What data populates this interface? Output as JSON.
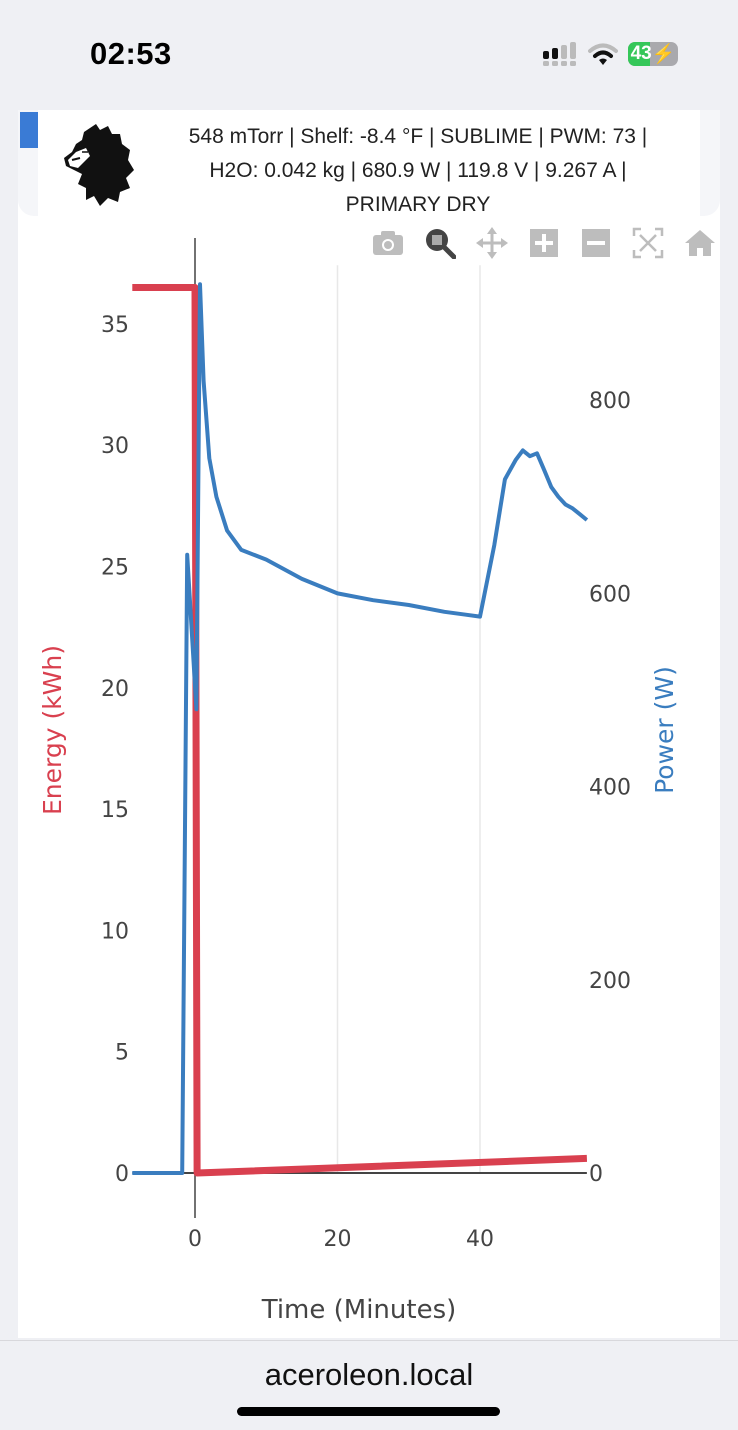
{
  "status_bar": {
    "time": "02:53",
    "battery_percent": "43",
    "icons": [
      "signal-icon",
      "wifi-icon",
      "battery-charging-icon"
    ]
  },
  "header": {
    "line1": "548 mTorr | Shelf: -8.4 °F | SUBLIME | PWM: 73 |",
    "line2": "H2O: 0.042 kg | 680.9 W | 119.8 V | 9.267 A |",
    "line3": "PRIMARY DRY",
    "logo": "lion-logo"
  },
  "modebar": {
    "buttons": [
      "camera-icon",
      "zoom-icon",
      "pan-icon",
      "zoom-in-icon",
      "zoom-out-icon",
      "autoscale-icon",
      "reset-axes-icon"
    ],
    "active": "zoom-icon"
  },
  "browser": {
    "url": "aceroleon.local"
  },
  "colors": {
    "energy": "#d9404f",
    "power": "#3a7dbf",
    "accent": "#3a7bd5"
  },
  "chart_data": {
    "type": "line",
    "title": "",
    "xlabel": "Time (Minutes)",
    "ylabel": "Energy (kWh)",
    "y2label": "Power (W)",
    "xlim": [
      -8.8,
      55
    ],
    "ylim": [
      0,
      37.5
    ],
    "y2lim": [
      0,
      960
    ],
    "x_ticks": [
      0,
      20,
      40
    ],
    "y_ticks": [
      0,
      5,
      10,
      15,
      20,
      25,
      30,
      35
    ],
    "y2_ticks": [
      0,
      200,
      400,
      600,
      800
    ],
    "grid": true,
    "series": [
      {
        "name": "Energy (kWh)",
        "axis": "y",
        "color": "#d9404f",
        "x": [
          -8.8,
          0,
          0.3,
          55
        ],
        "values": [
          36.5,
          36.5,
          0,
          0.6
        ]
      },
      {
        "name": "Power (W)",
        "axis": "y2",
        "color": "#3a7dbf",
        "x": [
          -8.8,
          -1.8,
          -1.1,
          0.2,
          0.7,
          1.2,
          2,
          3,
          4.5,
          6.5,
          10,
          15,
          20,
          25,
          30,
          35,
          38,
          40,
          42,
          43.5,
          45,
          46,
          47,
          48,
          49,
          50,
          51,
          52,
          53,
          54,
          55
        ],
        "values": [
          0,
          0,
          640,
          480,
          920,
          820,
          740,
          700,
          665,
          645,
          635,
          615,
          600,
          593,
          588,
          581,
          578,
          576,
          650,
          718,
          738,
          748,
          742,
          745,
          728,
          710,
          700,
          692,
          688,
          682,
          676
        ]
      }
    ]
  }
}
